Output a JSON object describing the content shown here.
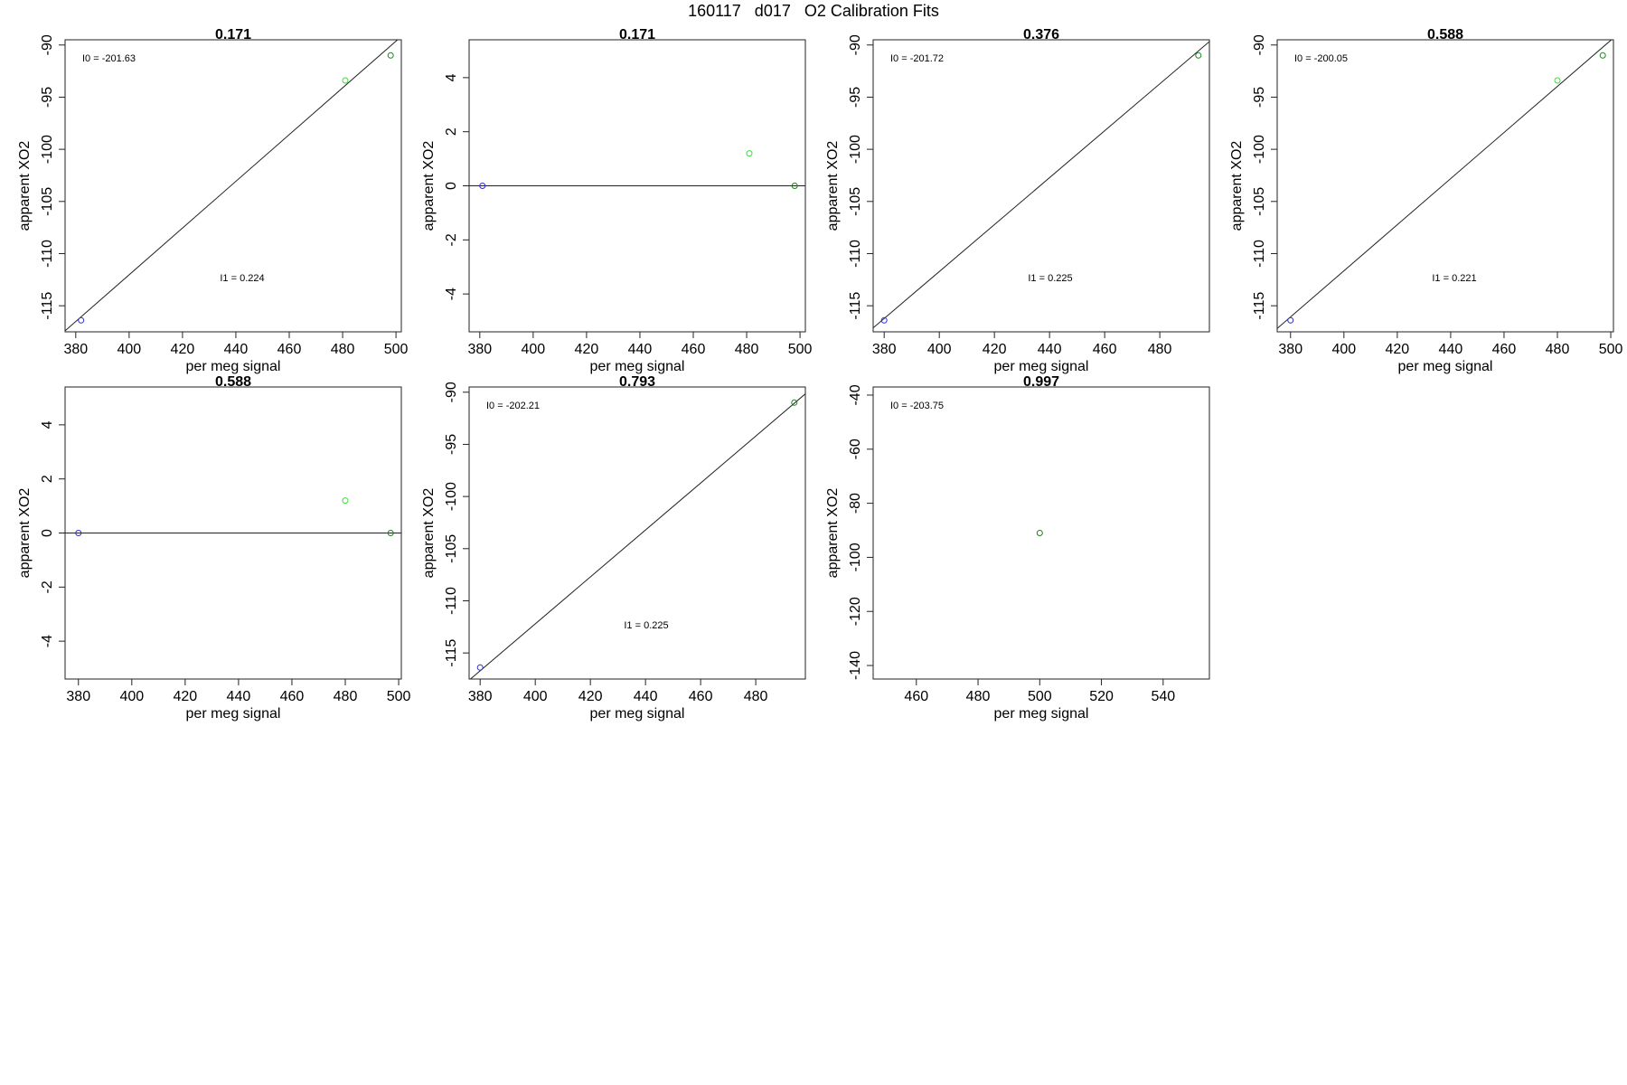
{
  "figure": {
    "title": "160117   d017   O2 Calibration Fits",
    "colors": {
      "frame": "#222222",
      "fit_line": "#222222",
      "blue": "#2b2bd6",
      "green": "#3fdc3f",
      "dark_green": "#1f7f1f"
    }
  },
  "chart_data": [
    {
      "type": "scatter",
      "title": "0.171",
      "xlabel": "per meg signal",
      "ylabel": "apparent XO2",
      "xlim": [
        376,
        502
      ],
      "ylim": [
        -117.5,
        -89.5
      ],
      "xticks": [
        380,
        400,
        420,
        440,
        460,
        480,
        500
      ],
      "yticks": [
        -90,
        -95,
        -100,
        -105,
        -110,
        -115
      ],
      "points": [
        {
          "x": 382,
          "y": -116.4,
          "color": "blue"
        },
        {
          "x": 481,
          "y": -93.4,
          "color": "green"
        },
        {
          "x": 498,
          "y": -91.0,
          "color": "dark_green"
        }
      ],
      "fit_line": {
        "intercept": -201.63,
        "slope": 0.224
      },
      "annotations": [
        {
          "text": "I0 =  -201.63",
          "position": "top-left"
        },
        {
          "text": "I1 =  0.224",
          "position": "middle-low"
        }
      ]
    },
    {
      "type": "scatter",
      "title": "0.171",
      "xlabel": "per meg signal",
      "ylabel": "apparent XO2",
      "xlim": [
        376,
        502
      ],
      "ylim": [
        -5.4,
        5.4
      ],
      "xticks": [
        380,
        400,
        420,
        440,
        460,
        480,
        500
      ],
      "yticks": [
        4,
        2,
        0,
        -2,
        -4
      ],
      "points": [
        {
          "x": 381,
          "y": 0.0,
          "color": "blue"
        },
        {
          "x": 481,
          "y": 1.2,
          "color": "green"
        },
        {
          "x": 498,
          "y": 0.0,
          "color": "dark_green"
        }
      ],
      "hline": 0,
      "annotations": []
    },
    {
      "type": "scatter",
      "title": "0.376",
      "xlabel": "per meg signal",
      "ylabel": "apparent XO2",
      "xlim": [
        376,
        498
      ],
      "ylim": [
        -117.5,
        -89.5
      ],
      "xticks": [
        380,
        400,
        420,
        440,
        460,
        480
      ],
      "yticks": [
        -90,
        -95,
        -100,
        -105,
        -110,
        -115
      ],
      "points": [
        {
          "x": 380,
          "y": -116.4,
          "color": "blue"
        },
        {
          "x": 494,
          "y": -91.0,
          "color": "dark_green"
        }
      ],
      "fit_line": {
        "intercept": -201.72,
        "slope": 0.225
      },
      "annotations": [
        {
          "text": "I0 =  -201.72",
          "position": "top-left"
        },
        {
          "text": "I1 =  0.225",
          "position": "middle-low"
        }
      ]
    },
    {
      "type": "scatter",
      "title": "0.588",
      "xlabel": "per meg signal",
      "ylabel": "apparent XO2",
      "xlim": [
        375,
        501
      ],
      "ylim": [
        -117.5,
        -89.5
      ],
      "xticks": [
        380,
        400,
        420,
        440,
        460,
        480,
        500
      ],
      "yticks": [
        -90,
        -95,
        -100,
        -105,
        -110,
        -115
      ],
      "points": [
        {
          "x": 380,
          "y": -116.4,
          "color": "blue"
        },
        {
          "x": 480,
          "y": -93.4,
          "color": "green"
        },
        {
          "x": 497,
          "y": -91.0,
          "color": "dark_green"
        }
      ],
      "fit_line": {
        "intercept": -200.05,
        "slope": 0.221
      },
      "annotations": [
        {
          "text": "I0 =  -200.05",
          "position": "top-left"
        },
        {
          "text": "I1 =  0.221",
          "position": "middle-low"
        }
      ]
    },
    {
      "type": "scatter",
      "title": "0.588",
      "xlabel": "per meg signal",
      "ylabel": "apparent XO2",
      "xlim": [
        375,
        501
      ],
      "ylim": [
        -5.4,
        5.4
      ],
      "xticks": [
        380,
        400,
        420,
        440,
        460,
        480,
        500
      ],
      "yticks": [
        4,
        2,
        0,
        -2,
        -4
      ],
      "points": [
        {
          "x": 380,
          "y": 0.0,
          "color": "blue"
        },
        {
          "x": 480,
          "y": 1.2,
          "color": "green"
        },
        {
          "x": 497,
          "y": 0.0,
          "color": "dark_green"
        }
      ],
      "hline": 0,
      "annotations": []
    },
    {
      "type": "scatter",
      "title": "0.793",
      "xlabel": "per meg signal",
      "ylabel": "apparent XO2",
      "xlim": [
        376,
        498
      ],
      "ylim": [
        -117.5,
        -89.5
      ],
      "xticks": [
        380,
        400,
        420,
        440,
        460,
        480
      ],
      "yticks": [
        -90,
        -95,
        -100,
        -105,
        -110,
        -115
      ],
      "points": [
        {
          "x": 380,
          "y": -116.4,
          "color": "blue"
        },
        {
          "x": 494,
          "y": -91.0,
          "color": "dark_green"
        }
      ],
      "fit_line": {
        "intercept": -202.21,
        "slope": 0.225
      },
      "annotations": [
        {
          "text": "I0 =  -202.21",
          "position": "top-left"
        },
        {
          "text": "I1 =  0.225",
          "position": "middle-low"
        }
      ]
    },
    {
      "type": "scatter",
      "title": "0.997",
      "xlabel": "per meg signal",
      "ylabel": "apparent XO2",
      "xlim": [
        446,
        555
      ],
      "ylim": [
        -145,
        -37
      ],
      "xticks": [
        460,
        480,
        500,
        520,
        540
      ],
      "yticks": [
        -40,
        -60,
        -80,
        -100,
        -120,
        -140
      ],
      "points": [
        {
          "x": 500,
          "y": -91.0,
          "color": "dark_green"
        }
      ],
      "annotations": [
        {
          "text": "I0 =  -203.75",
          "position": "top-left"
        }
      ]
    }
  ]
}
